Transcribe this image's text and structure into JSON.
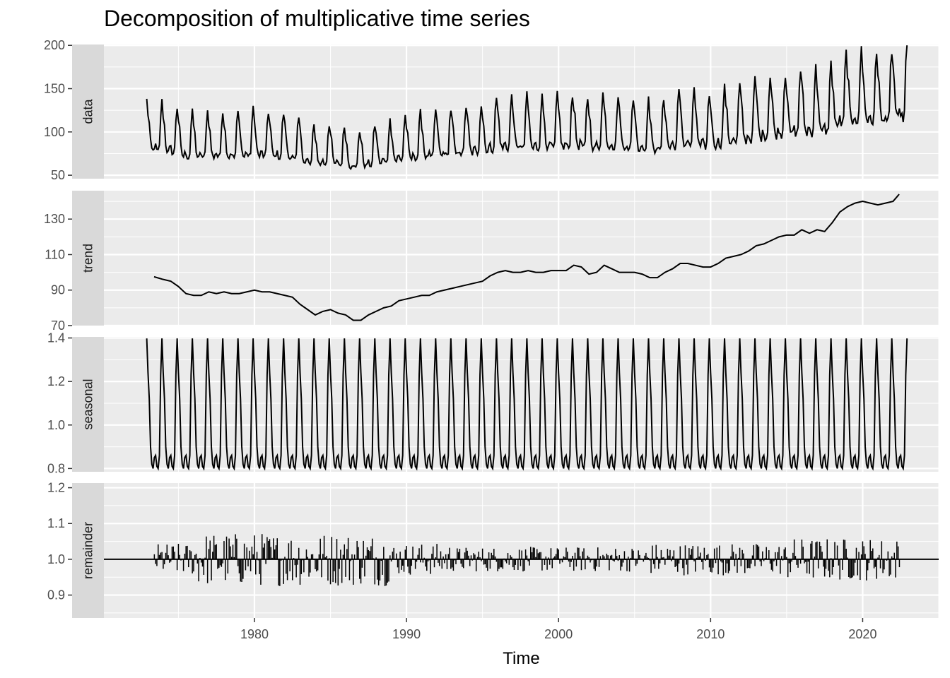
{
  "chart_data": {
    "type": "line",
    "title": "Decomposition of multiplicative time series",
    "xlabel": "Time",
    "x_range": [
      1970.1,
      2025.0
    ],
    "x_ticks": [
      1980,
      1990,
      2000,
      2010,
      2020
    ],
    "series_range": [
      1972.917,
      2022.917
    ],
    "frequency": 12,
    "grid": true,
    "panels": [
      {
        "name": "data",
        "ylim": [
          46,
          201
        ],
        "y_ticks": [
          50,
          100,
          150,
          200
        ],
        "y_tick_labels": [
          "50",
          "100",
          "150",
          "200"
        ],
        "series": [
          {
            "name": "data",
            "style": "line",
            "start": 1972.917,
            "end": 2022.917
          }
        ]
      },
      {
        "name": "trend",
        "ylim": [
          70,
          146
        ],
        "y_ticks": [
          70,
          90,
          110,
          130
        ],
        "y_tick_labels": [
          "70",
          "90",
          "110",
          "130"
        ],
        "series": [
          {
            "name": "trend",
            "style": "line",
            "points": [
              [
                1973.4,
                97.5
              ],
              [
                1974.0,
                96
              ],
              [
                1974.5,
                95
              ],
              [
                1975.0,
                92
              ],
              [
                1975.5,
                88
              ],
              [
                1976.0,
                87
              ],
              [
                1976.5,
                87
              ],
              [
                1977.0,
                89
              ],
              [
                1977.5,
                88
              ],
              [
                1978.0,
                89
              ],
              [
                1978.5,
                88
              ],
              [
                1979.0,
                88
              ],
              [
                1979.5,
                89
              ],
              [
                1980.0,
                90
              ],
              [
                1980.5,
                89
              ],
              [
                1981.0,
                89
              ],
              [
                1981.5,
                88
              ],
              [
                1982.0,
                87
              ],
              [
                1982.5,
                86
              ],
              [
                1983.0,
                82
              ],
              [
                1983.5,
                79
              ],
              [
                1984.0,
                76
              ],
              [
                1984.5,
                78
              ],
              [
                1985.0,
                79
              ],
              [
                1985.5,
                77
              ],
              [
                1986.0,
                76
              ],
              [
                1986.5,
                73
              ],
              [
                1987.0,
                73
              ],
              [
                1987.5,
                76
              ],
              [
                1988.0,
                78
              ],
              [
                1988.5,
                80
              ],
              [
                1989.0,
                81
              ],
              [
                1989.5,
                84
              ],
              [
                1990.0,
                85
              ],
              [
                1990.5,
                86
              ],
              [
                1991.0,
                87
              ],
              [
                1991.5,
                87
              ],
              [
                1992.0,
                89
              ],
              [
                1992.5,
                90
              ],
              [
                1993.0,
                91
              ],
              [
                1993.5,
                92
              ],
              [
                1994.0,
                93
              ],
              [
                1994.5,
                94
              ],
              [
                1995.0,
                95
              ],
              [
                1995.5,
                98
              ],
              [
                1996.0,
                100
              ],
              [
                1996.5,
                101
              ],
              [
                1997.0,
                100
              ],
              [
                1997.5,
                100
              ],
              [
                1998.0,
                101
              ],
              [
                1998.5,
                100
              ],
              [
                1999.0,
                100
              ],
              [
                1999.5,
                101
              ],
              [
                2000.0,
                101
              ],
              [
                2000.5,
                101
              ],
              [
                2001.0,
                104
              ],
              [
                2001.5,
                103
              ],
              [
                2002.0,
                99
              ],
              [
                2002.5,
                100
              ],
              [
                2003.0,
                104
              ],
              [
                2003.5,
                102
              ],
              [
                2004.0,
                100
              ],
              [
                2004.5,
                100
              ],
              [
                2005.0,
                100
              ],
              [
                2005.5,
                99
              ],
              [
                2006.0,
                97
              ],
              [
                2006.5,
                97
              ],
              [
                2007.0,
                100
              ],
              [
                2007.5,
                102
              ],
              [
                2008.0,
                105
              ],
              [
                2008.5,
                105
              ],
              [
                2009.0,
                104
              ],
              [
                2009.5,
                103
              ],
              [
                2010.0,
                103
              ],
              [
                2010.5,
                105
              ],
              [
                2011.0,
                108
              ],
              [
                2011.5,
                109
              ],
              [
                2012.0,
                110
              ],
              [
                2012.5,
                112
              ],
              [
                2013.0,
                115
              ],
              [
                2013.5,
                116
              ],
              [
                2014.0,
                118
              ],
              [
                2014.5,
                120
              ],
              [
                2015.0,
                121
              ],
              [
                2015.5,
                121
              ],
              [
                2016.0,
                124
              ],
              [
                2016.5,
                122
              ],
              [
                2017.0,
                124
              ],
              [
                2017.5,
                123
              ],
              [
                2018.0,
                128
              ],
              [
                2018.5,
                134
              ],
              [
                2019.0,
                137
              ],
              [
                2019.5,
                139
              ],
              [
                2020.0,
                140
              ],
              [
                2020.5,
                139
              ],
              [
                2021.0,
                138
              ],
              [
                2021.5,
                139
              ],
              [
                2022.0,
                140
              ],
              [
                2022.4,
                144
              ]
            ]
          }
        ]
      },
      {
        "name": "seasonal",
        "ylim": [
          0.785,
          1.405
        ],
        "y_ticks": [
          0.8,
          1.0,
          1.2,
          1.4
        ],
        "y_tick_labels": [
          "0.8",
          "1.0",
          "1.2",
          "1.4"
        ],
        "series": [
          {
            "name": "seasonal",
            "style": "line",
            "repeat": "yearly",
            "start": 1972.917,
            "end": 2022.917,
            "pattern": [
              1.398,
              1.24,
              1.12,
              0.9,
              0.82,
              0.8,
              0.85,
              0.86,
              0.81,
              0.8,
              0.86,
              1.23
            ]
          }
        ]
      },
      {
        "name": "remainder",
        "ylim": [
          0.836,
          1.213
        ],
        "y_ticks": [
          0.9,
          1.0,
          1.1,
          1.2
        ],
        "y_tick_labels": [
          "0.9",
          "1.0",
          "1.1",
          "1.2"
        ],
        "baseline": 1.0,
        "series": [
          {
            "name": "remainder",
            "style": "bars",
            "start": 1973.417,
            "end": 2022.417
          }
        ]
      }
    ]
  }
}
